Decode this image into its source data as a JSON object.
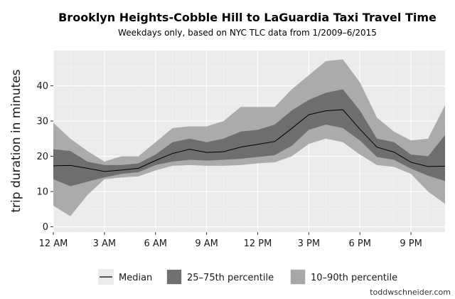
{
  "chart_data": {
    "type": "area",
    "title": "Brooklyn Heights-Cobble Hill to LaGuardia Taxi Travel Time",
    "subtitle": "Weekdays only, based on NYC TLC data from 1/2009–6/2015",
    "xlabel": "",
    "ylabel": "trip duration in minutes",
    "xlim": [
      0,
      23
    ],
    "ylim": [
      -1.5,
      50
    ],
    "x_ticks": [
      {
        "value": 0,
        "label": "12 AM"
      },
      {
        "value": 3,
        "label": "3 AM"
      },
      {
        "value": 6,
        "label": "6 AM"
      },
      {
        "value": 9,
        "label": "9 AM"
      },
      {
        "value": 12,
        "label": "12 PM"
      },
      {
        "value": 15,
        "label": "3 PM"
      },
      {
        "value": 18,
        "label": "6 PM"
      },
      {
        "value": 21,
        "label": "9 PM"
      }
    ],
    "y_ticks": [
      0,
      10,
      20,
      30,
      40
    ],
    "grid": true,
    "legend_position": "bottom",
    "x": [
      0,
      1,
      2,
      3,
      4,
      5,
      6,
      7,
      8,
      9,
      10,
      11,
      12,
      13,
      14,
      15,
      16,
      17,
      18,
      19,
      20,
      21,
      22,
      23
    ],
    "series": [
      {
        "name": "Median",
        "kind": "line",
        "values": [
          17.3,
          17.4,
          16.6,
          15.7,
          16.1,
          16.6,
          18.8,
          20.8,
          22.0,
          21.1,
          21.3,
          22.6,
          23.4,
          24.2,
          27.9,
          31.8,
          32.9,
          33.2,
          27.7,
          22.6,
          21.2,
          18.3,
          17.1,
          17.2
        ]
      },
      {
        "name": "25–75th percentile",
        "kind": "band",
        "low": [
          13.5,
          11.5,
          12.8,
          14.0,
          15.0,
          15.5,
          17.5,
          18.5,
          19.0,
          18.8,
          19.0,
          19.3,
          19.8,
          20.3,
          23.0,
          27.5,
          29.0,
          28.0,
          24.5,
          19.8,
          19.0,
          16.5,
          14.5,
          13.0
        ],
        "high": [
          22.0,
          21.5,
          18.5,
          17.5,
          17.5,
          18.0,
          20.5,
          24.0,
          25.0,
          24.0,
          25.0,
          27.0,
          27.5,
          29.0,
          33.0,
          36.0,
          38.0,
          39.0,
          33.0,
          25.0,
          24.0,
          20.5,
          20.0,
          26.0
        ]
      },
      {
        "name": "10–90th percentile",
        "kind": "band",
        "low": [
          6.0,
          3.0,
          9.0,
          13.5,
          14.0,
          14.3,
          16.0,
          17.3,
          17.5,
          17.3,
          17.3,
          17.5,
          18.0,
          18.3,
          20.0,
          23.5,
          25.0,
          24.0,
          20.5,
          17.5,
          17.0,
          15.0,
          10.0,
          6.5
        ],
        "high": [
          29.5,
          25.0,
          21.5,
          18.5,
          20.0,
          20.0,
          24.0,
          28.0,
          28.5,
          28.5,
          30.0,
          34.0,
          34.0,
          34.0,
          39.0,
          43.0,
          47.0,
          47.5,
          41.0,
          31.0,
          27.0,
          24.5,
          25.0,
          34.5
        ]
      }
    ],
    "legend": [
      {
        "label": "Median",
        "color": "#000000"
      },
      {
        "label": "25–75th percentile",
        "color": "#636363"
      },
      {
        "label": "10–90th percentile",
        "color": "#a0a0a0"
      }
    ],
    "colors": {
      "panel_background": "#ebebeb",
      "grid_major": "#ffffff",
      "grid_minor": "#f5f5f5",
      "band_outer": "#a0a0a0",
      "band_inner": "#636363",
      "median_line": "#000000"
    }
  },
  "credit": "toddwschneider.com"
}
